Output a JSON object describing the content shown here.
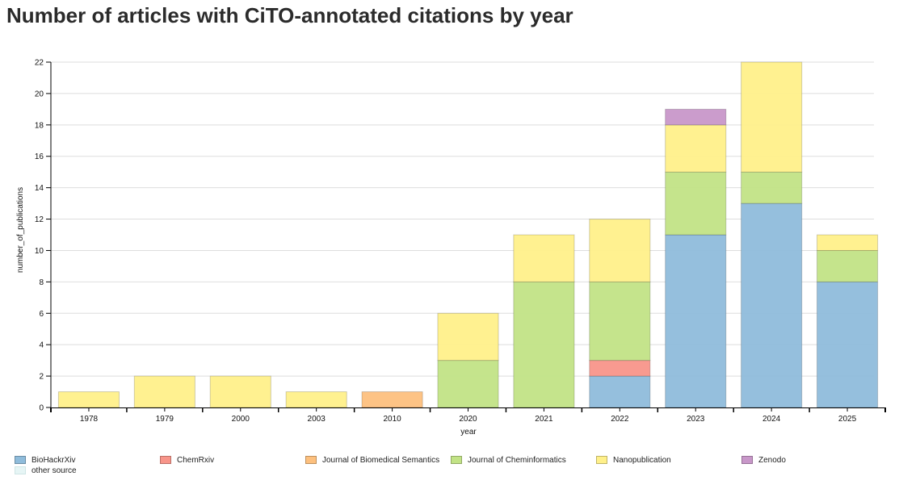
{
  "chart_data": {
    "type": "bar",
    "stacked": true,
    "title": "Number of articles with CiTO-annotated citations by year",
    "xlabel": "year",
    "ylabel": "number_of_publications",
    "ylim": [
      0,
      22
    ],
    "yticks": [
      0,
      2,
      4,
      6,
      8,
      10,
      12,
      14,
      16,
      18,
      20,
      22
    ],
    "grid": true,
    "legend_position": "bottom",
    "categories": [
      "1978",
      "1979",
      "2000",
      "2003",
      "2010",
      "2020",
      "2021",
      "2022",
      "2023",
      "2024",
      "2025"
    ],
    "series": [
      {
        "name": "BioHackrXiv",
        "color": "#8fbcdb",
        "values": [
          0,
          0,
          0,
          0,
          0,
          0,
          0,
          2,
          11,
          13,
          8
        ]
      },
      {
        "name": "ChemRxiv",
        "color": "#f8958a",
        "values": [
          0,
          0,
          0,
          0,
          0,
          0,
          0,
          1,
          0,
          0,
          0
        ]
      },
      {
        "name": "Journal of Biomedical Semantics",
        "color": "#fdc07e",
        "values": [
          0,
          0,
          0,
          0,
          1,
          0,
          0,
          0,
          0,
          0,
          0
        ]
      },
      {
        "name": "Journal of Cheminformatics",
        "color": "#c2e386",
        "values": [
          0,
          0,
          0,
          0,
          0,
          3,
          8,
          5,
          4,
          2,
          2
        ]
      },
      {
        "name": "Nanopublication",
        "color": "#fff08a",
        "values": [
          1,
          2,
          2,
          1,
          0,
          3,
          3,
          4,
          3,
          7,
          1
        ]
      },
      {
        "name": "Zenodo",
        "color": "#c897c9",
        "values": [
          0,
          0,
          0,
          0,
          0,
          0,
          0,
          0,
          1,
          0,
          0
        ]
      },
      {
        "name": "other source",
        "color": "#e6f5f5",
        "values": [
          0,
          0,
          0,
          0,
          0,
          0,
          0,
          0,
          0,
          0,
          0
        ]
      }
    ]
  }
}
